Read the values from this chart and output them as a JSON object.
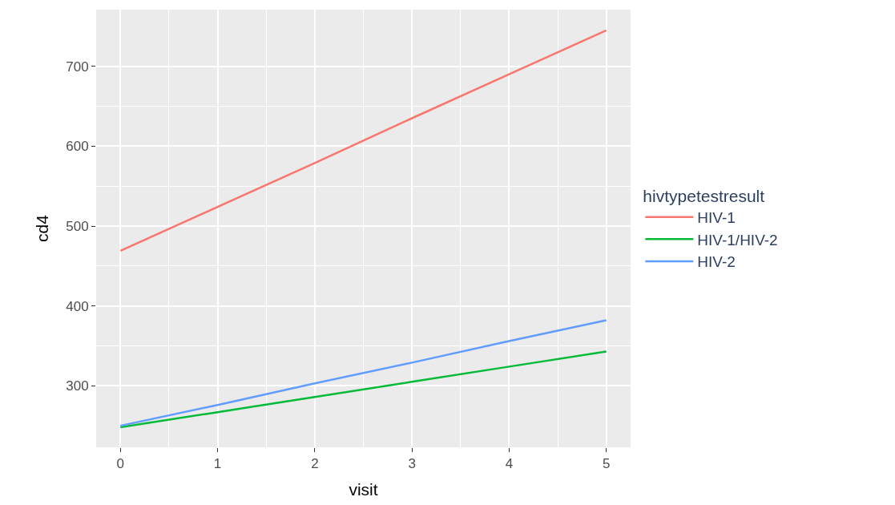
{
  "chart_data": {
    "type": "line",
    "xlabel": "visit",
    "ylabel": "cd4",
    "legend_title": "hivtypetestresult",
    "xlim": [
      -0.25,
      5.25
    ],
    "xticks": [
      0,
      1,
      2,
      3,
      4,
      5
    ],
    "ylim": [
      223,
      771
    ],
    "yticks": [
      300,
      400,
      500,
      600,
      700
    ],
    "grid": true,
    "legend": "right",
    "marker": "none",
    "line_style": "solid",
    "x": [
      0,
      1,
      2,
      3,
      4,
      5
    ],
    "series": [
      {
        "name": "HIV-1",
        "color": "#f8766d",
        "values": [
          469,
          524,
          579,
          635,
          690,
          745
        ]
      },
      {
        "name": "HIV-1/HIV-2",
        "color": "#00ba38",
        "values": [
          248,
          267,
          286,
          305,
          324,
          343
        ]
      },
      {
        "name": "HIV-2",
        "color": "#619cff",
        "values": [
          250,
          276,
          303,
          329,
          356,
          382
        ]
      }
    ]
  }
}
